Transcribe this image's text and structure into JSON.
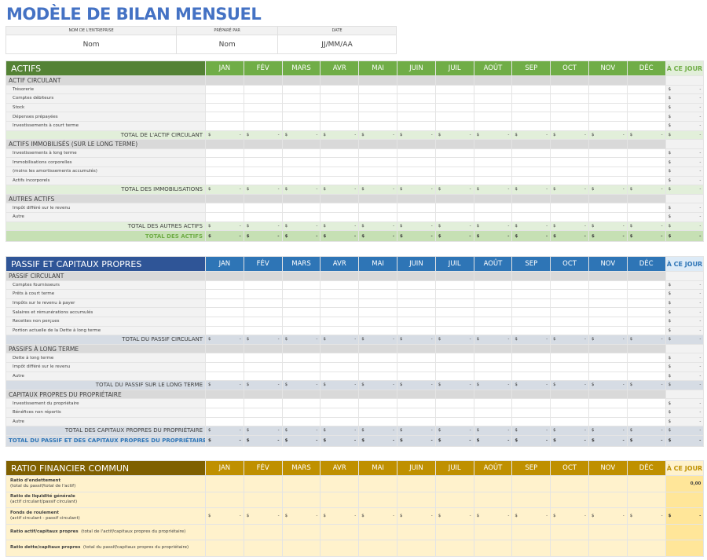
{
  "title": "MODÈLE DE BILAN MENSUEL",
  "info": {
    "headers": [
      "NOM DE L'ENTREPRISE",
      "PRÉPARÉ PAR",
      "DATE"
    ],
    "values": [
      "Nom",
      "Nom",
      "JJ/MM/AA"
    ]
  },
  "months": [
    "JAN",
    "FÉV",
    "MARS",
    "AVR",
    "MAI",
    "JUIN",
    "JUIL",
    "AOÛT",
    "SEP",
    "OCT",
    "NOV",
    "DÉC"
  ],
  "ytd_label": "À CE JOUR",
  "money": {
    "symbol": "$",
    "empty": "-"
  },
  "colors": {
    "assets_header": "#548235",
    "assets_month": "#70ad47",
    "assets_total": "#e2efda",
    "assets_grand": "#c6e0b4",
    "liab_header": "#2f5597",
    "liab_month": "#2e75b6",
    "liab_total": "#d6dce4",
    "liab_ytd": "#ddebf7",
    "ratio_header": "#7f6000",
    "ratio_month": "#bf9000",
    "ratio_bg": "#fff2cc",
    "ratio_ytd": "#ffe699"
  },
  "assets": {
    "title": "ACTIFS",
    "sections": [
      {
        "label": "ACTIF CIRCULANT",
        "items": [
          "Trésorerie",
          "Comptes débiteurs",
          "Stock",
          "Dépenses prépayées",
          "Investissements à court terme"
        ],
        "total": "TOTAL DE L'ACTIF CIRCULANT"
      },
      {
        "label": "ACTIFS IMMOBILISÉS (SUR LE LONG TERME)",
        "items": [
          "Investissements à long terme",
          "Immobilisations corporelles",
          "(moins les amortissements accumulés)",
          "Actifs incorporels"
        ],
        "total": "TOTAL DES IMMOBILISATIONS"
      },
      {
        "label": "AUTRES ACTIFS",
        "items": [
          "Impôt différé sur le revenu",
          "Autre"
        ],
        "total": "TOTAL DES AUTRES ACTIFS"
      }
    ],
    "grand_total": "TOTAL DES ACTIFS"
  },
  "liabilities": {
    "title": "PASSIF ET CAPITAUX PROPRES",
    "sections": [
      {
        "label": "PASSIF CIRCULANT",
        "items": [
          "Comptes fournisseurs",
          "Prêts à court terme",
          "Impôts sur le revenu à payer",
          "Salaires et rémunérations accumulés",
          "Recettes non perçues",
          "Portion actuelle de la Dette à long terme"
        ],
        "total": "TOTAL DU PASSIF CIRCULANT"
      },
      {
        "label": "PASSIFS À LONG TERME",
        "items": [
          "Dette à long terme",
          "Impôt différé sur le revenu",
          "Autre"
        ],
        "total": "TOTAL DU PASSIF SUR LE LONG TERME"
      },
      {
        "label": "CAPITAUX PROPRES DU PROPRIÉTAIRE",
        "items": [
          "Investissement du propriétaire",
          "Bénéfices non réportis",
          "Autre"
        ],
        "total": "TOTAL DES CAPITAUX PROPRES DU PROPRIÉTAIRE"
      }
    ],
    "grand_total": "TOTAL DU PASSIF ET DES CAPITAUX PROPRES DU PROPRIÉTAIRE"
  },
  "ratios": {
    "title": "RATIO FINANCIER COMMUN",
    "rows": [
      {
        "name": "Ratio d'endettement",
        "formula": "(total du passif/total de l'actif)",
        "inline": false,
        "money": false,
        "ytd": "0,00"
      },
      {
        "name": "Ratio de liquidité générale",
        "formula": "(actif circulant/passif circulant)",
        "inline": false,
        "money": false,
        "ytd": ""
      },
      {
        "name": "Fonds de roulement",
        "formula": "(actif circulant - passif circulant)",
        "inline": false,
        "money": true,
        "ytd": ""
      },
      {
        "name": "Ratio actif/capitaux propres",
        "formula": "(total de l'actif/capitaux propres du propriétaire)",
        "inline": true,
        "money": false,
        "ytd": ""
      },
      {
        "name": "Ratio dette/capitaux propres",
        "formula": "(total du passif/capitaux propres du propriétaire)",
        "inline": true,
        "money": false,
        "ytd": ""
      }
    ]
  }
}
